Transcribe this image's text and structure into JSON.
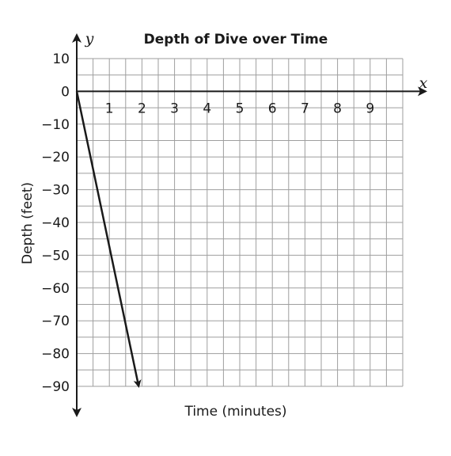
{
  "chart_data": {
    "type": "line",
    "title": "Depth of Dive over Time",
    "xlabel": "Time (minutes)",
    "ylabel": "Depth (feet)",
    "x_axis_name": "x",
    "y_axis_name": "y",
    "xlim": [
      0,
      10
    ],
    "ylim": [
      -90,
      10
    ],
    "x_ticks": [
      "1",
      "2",
      "3",
      "4",
      "5",
      "6",
      "7",
      "8",
      "9"
    ],
    "y_ticks": [
      "10",
      "0",
      "−10",
      "−20",
      "−30",
      "−40",
      "−50",
      "−60",
      "−70",
      "−80",
      "−90"
    ],
    "grid": true,
    "grid_step_x": 0.5,
    "grid_step_y": 5,
    "series": [
      {
        "x": [
          0,
          1.9
        ],
        "y": [
          0,
          -90
        ],
        "end_arrow": true
      }
    ]
  }
}
